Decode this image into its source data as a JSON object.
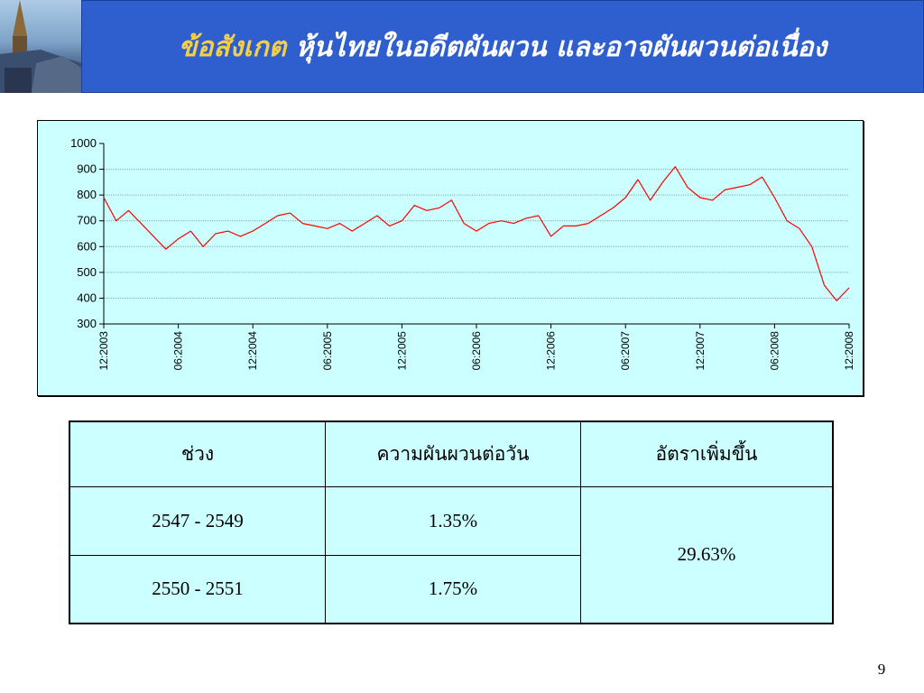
{
  "header": {
    "title_accent": "ข้อสังเกต",
    "title_rest": " หุ้นไทยในอดีตผันผวน และอาจผันผวนต่อเนื่อง"
  },
  "colors": {
    "header_band": "#2f5fcf",
    "title_accent": "#f2cf4a",
    "chart_background": "#ccffff",
    "series_line": "#ff0000",
    "table_background": "#ccffff"
  },
  "chart_data": {
    "type": "line",
    "title": "",
    "xlabel": "",
    "ylabel": "",
    "ylim": [
      300,
      1000
    ],
    "y_ticks": [
      "300",
      "400",
      "500",
      "600",
      "700",
      "800",
      "900",
      "1000"
    ],
    "x_ticks": [
      "12:2003",
      "06:2004",
      "12:2004",
      "06:2005",
      "12:2005",
      "06:2006",
      "12:2006",
      "06:2007",
      "12:2007",
      "06:2008",
      "12:2008"
    ],
    "grid": true,
    "series": [
      {
        "x": [
          "12:2003",
          "01:2004",
          "02:2004",
          "03:2004",
          "04:2004",
          "05:2004",
          "06:2004",
          "07:2004",
          "08:2004",
          "09:2004",
          "10:2004",
          "11:2004",
          "12:2004",
          "01:2005",
          "02:2005",
          "03:2005",
          "04:2005",
          "05:2005",
          "06:2005",
          "07:2005",
          "08:2005",
          "09:2005",
          "10:2005",
          "11:2005",
          "12:2005",
          "01:2006",
          "02:2006",
          "03:2006",
          "04:2006",
          "05:2006",
          "06:2006",
          "07:2006",
          "08:2006",
          "09:2006",
          "10:2006",
          "11:2006",
          "12:2006",
          "01:2007",
          "02:2007",
          "03:2007",
          "04:2007",
          "05:2007",
          "06:2007",
          "07:2007",
          "08:2007",
          "09:2007",
          "10:2007",
          "11:2007",
          "12:2007",
          "01:2008",
          "02:2008",
          "03:2008",
          "04:2008",
          "05:2008",
          "06:2008",
          "07:2008",
          "08:2008",
          "09:2008",
          "10:2008",
          "11:2008",
          "12:2008"
        ],
        "values": [
          790,
          700,
          740,
          690,
          640,
          590,
          630,
          660,
          600,
          650,
          660,
          640,
          660,
          690,
          720,
          730,
          690,
          680,
          670,
          690,
          660,
          690,
          720,
          680,
          700,
          760,
          740,
          750,
          780,
          690,
          660,
          690,
          700,
          690,
          710,
          720,
          640,
          680,
          680,
          690,
          720,
          750,
          790,
          860,
          780,
          850,
          910,
          830,
          790,
          780,
          820,
          830,
          840,
          870,
          790,
          700,
          670,
          600,
          450,
          390,
          440
        ]
      }
    ]
  },
  "table": {
    "headers": [
      "ช่วง",
      "ความผันผวนต่อวัน",
      "อัตราเพิ่มขึ้น"
    ],
    "rows": [
      {
        "period": "2547 - 2549",
        "volatility": "1.35%"
      },
      {
        "period": "2550 - 2551",
        "volatility": "1.75%"
      }
    ],
    "increase": "29.63%"
  },
  "page_number": "9"
}
